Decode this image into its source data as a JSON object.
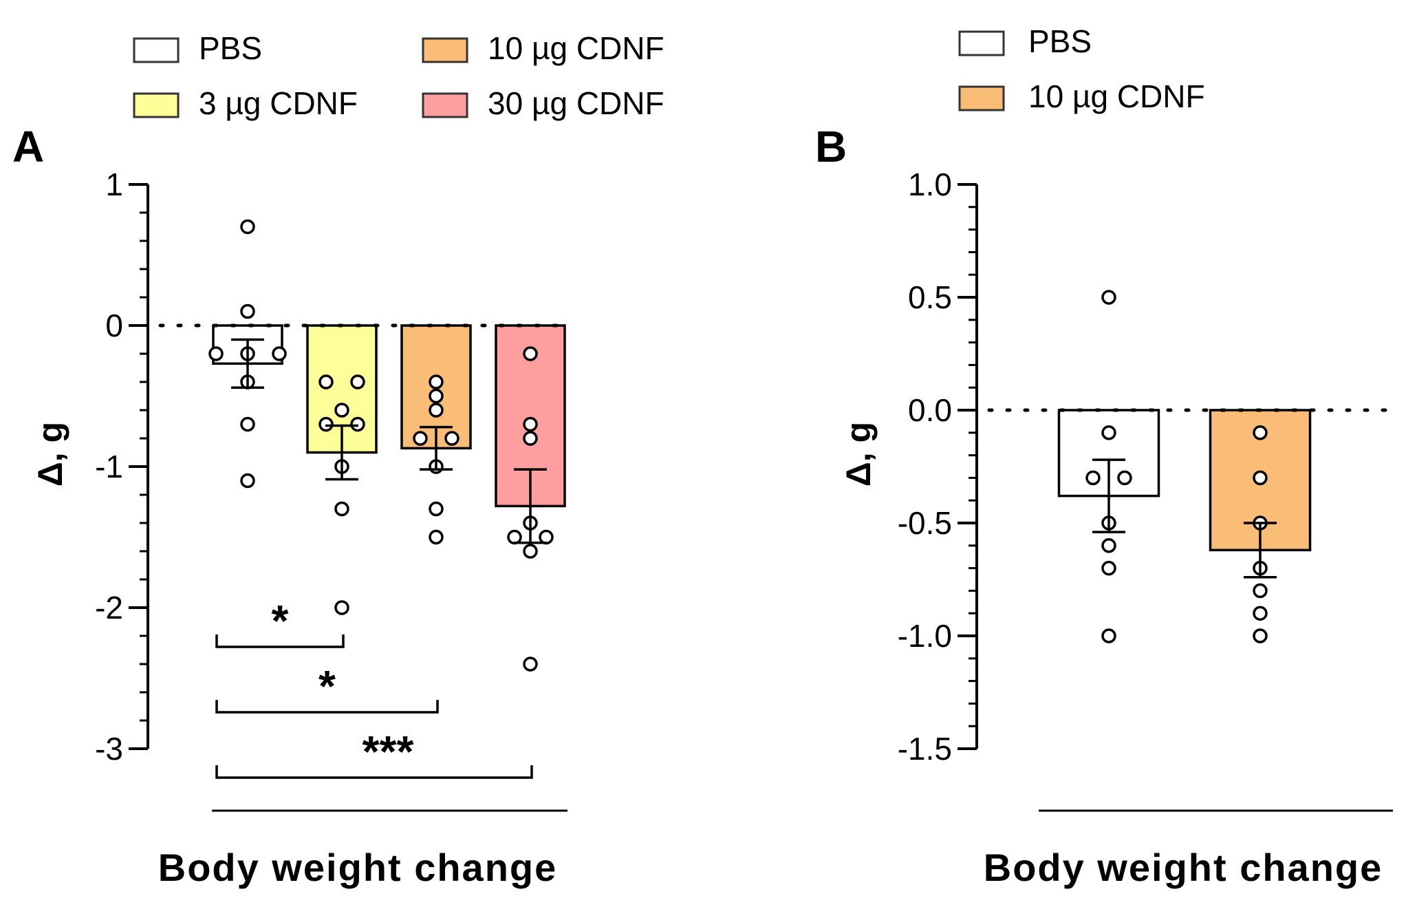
{
  "chart_data": [
    {
      "type": "bar",
      "panel_label": "A",
      "title": "",
      "xlabel": "Body weight change",
      "ylabel": "Δ, g",
      "ylim": [
        -3,
        1
      ],
      "yticks": [
        1,
        0,
        -1,
        -2,
        -3
      ],
      "ytick_labels": [
        "1",
        "0",
        "-1",
        "-2",
        "-3"
      ],
      "zero_line": "dotted",
      "legend": {
        "placement": "top",
        "entries": [
          {
            "label": "PBS",
            "color": "#ffffff"
          },
          {
            "label": "3 µg CDNF",
            "color": "#ffff99"
          },
          {
            "label": "10 µg CDNF",
            "color": "#f9bd77"
          },
          {
            "label": "30 µg CDNF",
            "color": "#ff9e9e"
          }
        ]
      },
      "series": [
        {
          "name": "PBS",
          "color": "#ffffff",
          "mean": -0.27,
          "sem": 0.17,
          "points": [
            0.7,
            0.1,
            -0.2,
            -0.2,
            -0.2,
            -0.4,
            -0.7,
            -1.1
          ]
        },
        {
          "name": "3 µg CDNF",
          "color": "#ffff99",
          "mean": -0.9,
          "sem": 0.19,
          "points": [
            -0.4,
            -0.4,
            -0.6,
            -0.7,
            -0.7,
            -1.0,
            -1.3,
            -2.0
          ]
        },
        {
          "name": "10 µg CDNF",
          "color": "#f9bd77",
          "mean": -0.87,
          "sem": 0.15,
          "points": [
            -0.4,
            -0.5,
            -0.6,
            -0.8,
            -0.8,
            -1.0,
            -1.3,
            -1.5
          ]
        },
        {
          "name": "30 µg CDNF",
          "color": "#ff9e9e",
          "mean": -1.28,
          "sem": 0.26,
          "points": [
            -0.2,
            -0.7,
            -0.8,
            -1.4,
            -1.5,
            -1.5,
            -1.6,
            -2.4
          ]
        }
      ],
      "significance": [
        {
          "from": 0,
          "to": 1,
          "label": "*"
        },
        {
          "from": 0,
          "to": 2,
          "label": "*"
        },
        {
          "from": 0,
          "to": 3,
          "label": "***"
        }
      ]
    },
    {
      "type": "bar",
      "panel_label": "B",
      "title": "",
      "xlabel": "Body weight change",
      "ylabel": "Δ, g",
      "ylim": [
        -1.5,
        1.0
      ],
      "yticks": [
        1.0,
        0.5,
        0.0,
        -0.5,
        -1.0,
        -1.5
      ],
      "ytick_labels": [
        "1.0",
        "0.5",
        "0.0",
        "-0.5",
        "-1.0",
        "-1.5"
      ],
      "zero_line": "dotted",
      "legend": {
        "placement": "top",
        "entries": [
          {
            "label": "PBS",
            "color": "#ffffff"
          },
          {
            "label": "10 µg CDNF",
            "color": "#f9bd77"
          }
        ]
      },
      "series": [
        {
          "name": "PBS",
          "color": "#ffffff",
          "mean": -0.38,
          "sem": 0.16,
          "points": [
            0.5,
            -0.1,
            -0.3,
            -0.3,
            -0.5,
            -0.6,
            -0.7,
            -1.0
          ]
        },
        {
          "name": "10 µg CDNF",
          "color": "#f9bd77",
          "mean": -0.62,
          "sem": 0.12,
          "points": [
            -0.1,
            -0.3,
            -0.5,
            -0.7,
            -0.8,
            -0.9,
            -1.0
          ]
        }
      ],
      "significance": []
    }
  ]
}
